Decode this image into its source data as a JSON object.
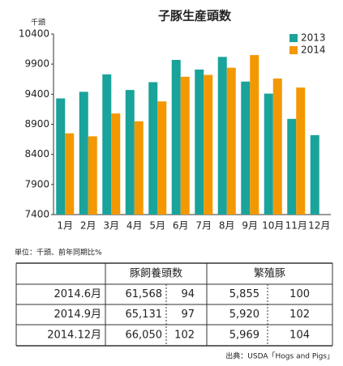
{
  "chart_data": {
    "type": "bar",
    "title": "子豚生産頭数",
    "y_label": "千頭",
    "categories": [
      "1月",
      "2月",
      "3月",
      "4月",
      "5月",
      "6月",
      "7月",
      "8月",
      "9月",
      "10月",
      "11月",
      "12月"
    ],
    "series": [
      {
        "name": "2013",
        "color": "#1aa39a",
        "values": [
          9330,
          9440,
          9730,
          9470,
          9600,
          9970,
          9810,
          10020,
          9610,
          9410,
          8990,
          8720
        ]
      },
      {
        "name": "2014",
        "color": "#f39800",
        "values": [
          8750,
          8700,
          9080,
          8950,
          9280,
          9690,
          9720,
          9840,
          10050,
          9660,
          9510,
          null
        ]
      }
    ],
    "ylim": [
      7400,
      10400
    ],
    "yticks": [
      7400,
      7900,
      8400,
      8900,
      9400,
      9900,
      10400
    ],
    "legend": "top-right"
  },
  "unit_note": "単位：千頭、前年同期比%",
  "table": {
    "header": [
      "豚飼養頭数",
      "繁殖豚"
    ],
    "rows": [
      [
        "2014.6月",
        "61,568",
        "94",
        "5,855",
        "100"
      ],
      [
        "2014.9月",
        "65,131",
        "97",
        "5,920",
        "102"
      ],
      [
        "2014.12月",
        "66,050",
        "102",
        "5,969",
        "104"
      ]
    ]
  },
  "source": "出典：USDA「Hogs and Pigs」"
}
